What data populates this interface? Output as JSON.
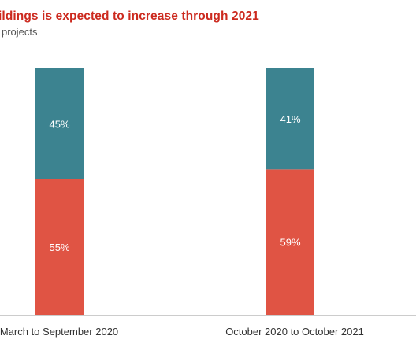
{
  "chart_data": {
    "type": "bar",
    "stacked": true,
    "normalized": true,
    "title": "ildings is expected to increase through 2021",
    "subtitle": "projects",
    "categories": [
      "March to September 2020",
      "October 2020 to October 2021"
    ],
    "series": [
      {
        "values": [
          55,
          59
        ],
        "color": "#e05444",
        "labels": [
          "55%",
          "59%"
        ]
      },
      {
        "values": [
          45,
          41
        ],
        "color": "#3c8390",
        "labels": [
          "45%",
          "41%"
        ]
      }
    ],
    "ylim": [
      0,
      100
    ],
    "title_color": "#cc2a1f",
    "baseline_color": "#cccccc"
  }
}
